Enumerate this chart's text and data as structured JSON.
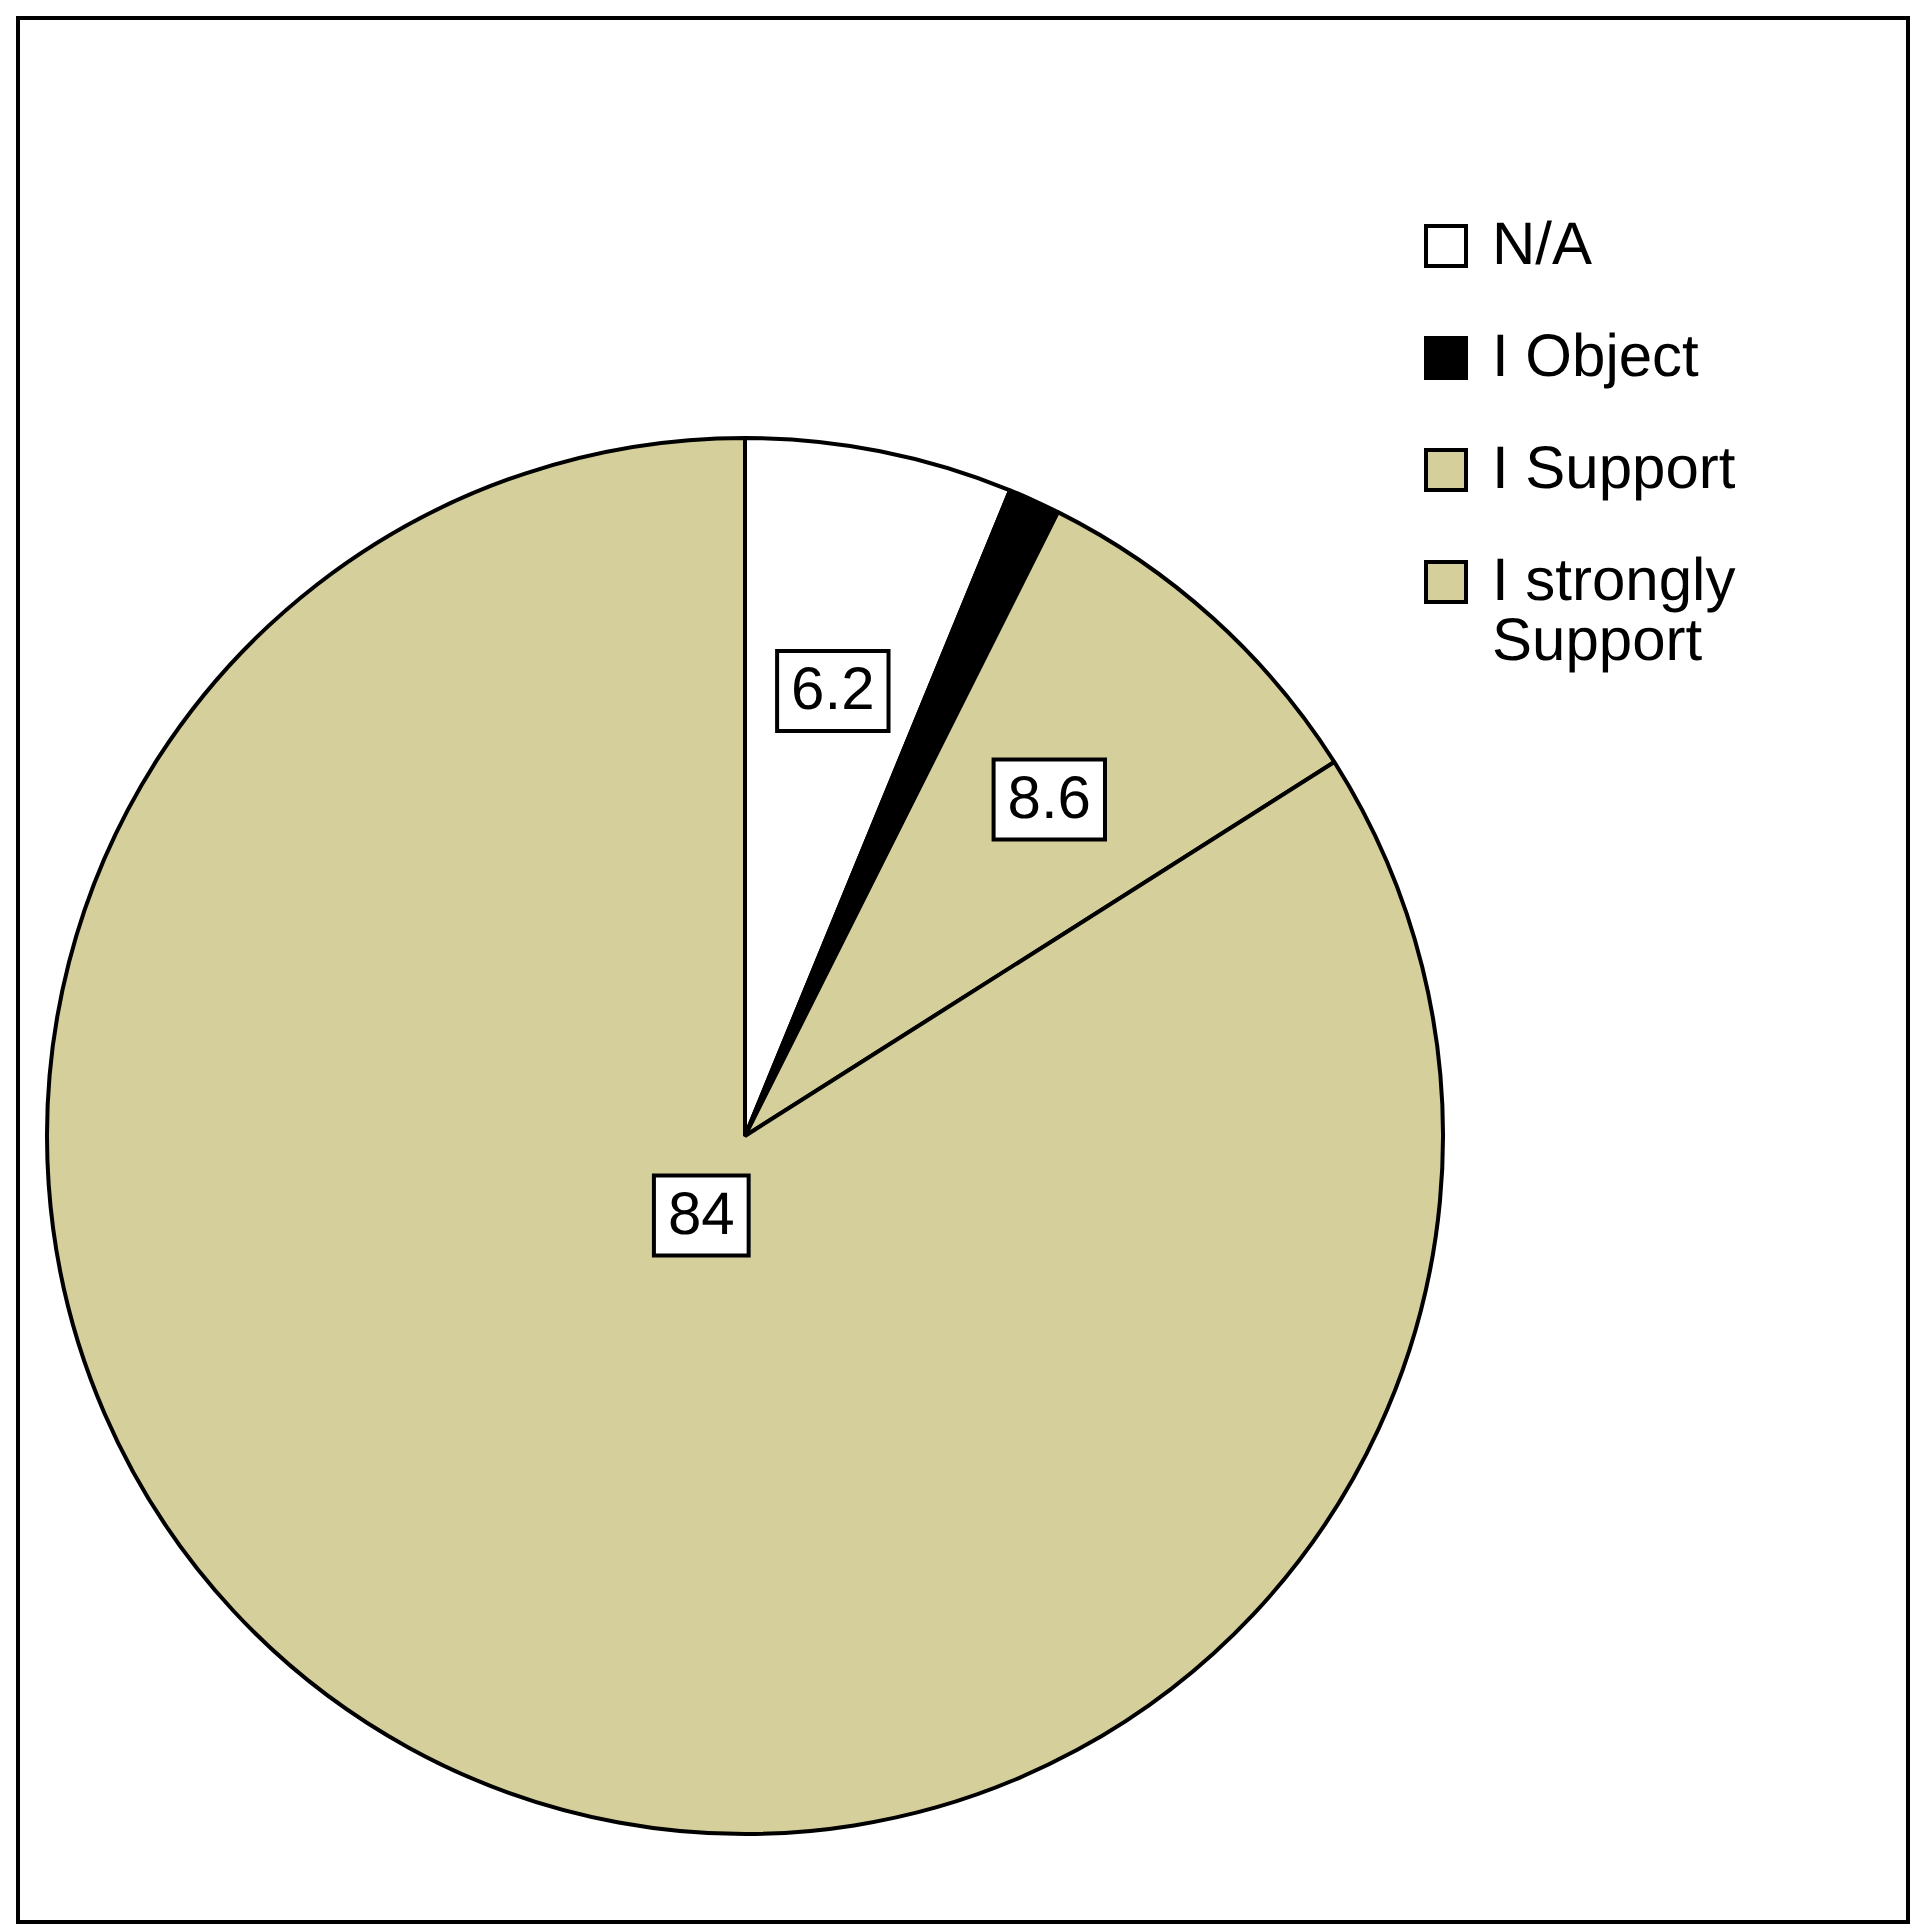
{
  "chart_data": {
    "type": "pie",
    "categories": [
      "N/A",
      "I Object",
      "I Support",
      "I strongly Support"
    ],
    "values": [
      6.2,
      1.2,
      8.6,
      84
    ],
    "colors": [
      "#ffffff",
      "#000000",
      "#d4cf9b",
      "#d4cf9b"
    ],
    "value_labels": [
      "6.2",
      null,
      "8.6",
      "84"
    ],
    "legend": "top right"
  }
}
